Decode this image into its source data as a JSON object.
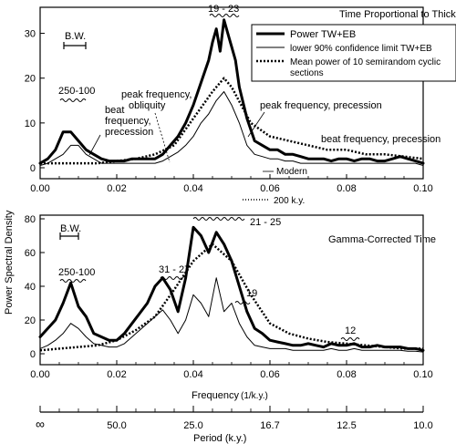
{
  "figure": {
    "ylabel": "Power Spectral Density",
    "xlabel": "Frequency",
    "xlabel_units": "(1/k.y.)",
    "period_axis_label": "Period (k.y.)",
    "period_ticks": [
      "∞",
      "50.0",
      "25.0",
      "16.7",
      "12.5",
      "10.0"
    ]
  },
  "legend": {
    "entries": [
      {
        "label": "Power TW+EB",
        "style": "thick"
      },
      {
        "label": "lower 90% confidence limit TW+EB",
        "style": "thin"
      },
      {
        "label": "Mean power of 10 semirandom cyclic",
        "label2": "sections",
        "style": "dotted"
      }
    ]
  },
  "chart_data": [
    {
      "type": "line",
      "title": "Time Proportional to Thickness",
      "xlim": [
        0,
        0.1
      ],
      "ylim": [
        0,
        35
      ],
      "x_ticks": [
        "0.00",
        "0.02",
        "0.04",
        "0.06",
        "0.08",
        "0.10"
      ],
      "y_ticks": [
        "0",
        "10",
        "20",
        "30"
      ],
      "annotations": {
        "bw": "B.W.",
        "band_250_100": "250-100",
        "band_19_23": "19 - 23",
        "beat_precession_1": "beat",
        "beat_precession_2": "frequency,",
        "beat_precession_3": "precession",
        "peak_obliquity_1": "peak frequency,",
        "peak_obliquity_2": "obliquity",
        "peak_precession": "peak frequency, precession",
        "beat_precession_right": "beat frequency, precession",
        "modern": "Modern",
        "k200": "200 k.y."
      },
      "series": [
        {
          "name": "Power TW+EB",
          "x": [
            0,
            0.002,
            0.004,
            0.006,
            0.008,
            0.01,
            0.012,
            0.014,
            0.016,
            0.018,
            0.02,
            0.022,
            0.024,
            0.026,
            0.028,
            0.03,
            0.032,
            0.034,
            0.036,
            0.038,
            0.04,
            0.042,
            0.044,
            0.045,
            0.046,
            0.047,
            0.048,
            0.049,
            0.05,
            0.051,
            0.052,
            0.054,
            0.056,
            0.058,
            0.06,
            0.062,
            0.064,
            0.066,
            0.068,
            0.07,
            0.072,
            0.074,
            0.076,
            0.078,
            0.08,
            0.082,
            0.084,
            0.086,
            0.088,
            0.09,
            0.092,
            0.094,
            0.096,
            0.098,
            0.1
          ],
          "values": [
            1,
            2,
            4,
            8,
            8,
            6,
            4,
            3,
            2,
            1.5,
            1.5,
            1.5,
            2,
            2,
            2,
            2,
            3,
            5,
            7,
            10,
            14,
            19,
            24,
            28,
            31,
            26,
            33,
            30,
            27,
            24,
            18,
            11,
            6,
            5,
            4,
            4,
            3,
            3,
            2.5,
            2,
            2,
            2,
            1.5,
            2,
            2,
            1.5,
            2,
            2,
            1.5,
            1.5,
            2,
            2.5,
            2,
            1.5,
            1
          ]
        },
        {
          "name": "lower 90% confidence limit TW+EB",
          "x": [
            0,
            0.002,
            0.004,
            0.006,
            0.008,
            0.01,
            0.012,
            0.014,
            0.016,
            0.018,
            0.02,
            0.022,
            0.024,
            0.026,
            0.028,
            0.03,
            0.032,
            0.034,
            0.036,
            0.038,
            0.04,
            0.042,
            0.044,
            0.046,
            0.048,
            0.05,
            0.052,
            0.054,
            0.056,
            0.058,
            0.06,
            0.062,
            0.064,
            0.066,
            0.068,
            0.07,
            0.072,
            0.074,
            0.076,
            0.078,
            0.08,
            0.082,
            0.084,
            0.086,
            0.088,
            0.09,
            0.092,
            0.094,
            0.096,
            0.098,
            0.1
          ],
          "values": [
            0.5,
            1,
            2,
            3,
            5,
            5,
            3,
            2,
            1,
            1,
            1,
            1,
            1,
            1,
            1,
            1,
            1.5,
            2.5,
            3.5,
            5,
            7,
            10,
            12,
            15,
            17,
            14,
            10,
            5,
            3,
            2.5,
            2,
            2,
            1.5,
            1.5,
            1,
            1,
            1,
            1,
            1,
            1,
            1,
            1,
            1,
            1,
            1,
            1,
            1,
            1,
            1,
            1,
            0.5
          ]
        },
        {
          "name": "Mean power of 10 semirandom cyclic sections",
          "x": [
            0,
            0.005,
            0.01,
            0.015,
            0.02,
            0.025,
            0.03,
            0.035,
            0.04,
            0.045,
            0.048,
            0.05,
            0.055,
            0.06,
            0.065,
            0.07,
            0.075,
            0.08,
            0.085,
            0.09,
            0.095,
            0.1
          ],
          "values": [
            1,
            1,
            1,
            1,
            1.5,
            2,
            3,
            5,
            11,
            17,
            20,
            18,
            10,
            7,
            6,
            5,
            4,
            4,
            3,
            3,
            2.5,
            2
          ]
        }
      ]
    },
    {
      "type": "line",
      "title": "Gamma-Corrected Time",
      "xlim": [
        0,
        0.1
      ],
      "ylim": [
        0,
        80
      ],
      "x_ticks": [
        "0.00",
        "0.02",
        "0.04",
        "0.06",
        "0.08",
        "0.10"
      ],
      "y_ticks": [
        "0",
        "20",
        "40",
        "60",
        "80"
      ],
      "annotations": {
        "bw": "B.W.",
        "band_250_100": "250-100",
        "band_21_25": "21 - 25",
        "band_31_27": "31 - 27",
        "band_19": "19",
        "band_12": "12"
      },
      "series": [
        {
          "name": "Power TW+EB",
          "x": [
            0,
            0.002,
            0.004,
            0.006,
            0.008,
            0.01,
            0.012,
            0.014,
            0.016,
            0.018,
            0.02,
            0.022,
            0.024,
            0.026,
            0.028,
            0.03,
            0.032,
            0.034,
            0.036,
            0.038,
            0.04,
            0.042,
            0.044,
            0.046,
            0.048,
            0.05,
            0.052,
            0.054,
            0.056,
            0.058,
            0.06,
            0.062,
            0.064,
            0.066,
            0.068,
            0.07,
            0.072,
            0.074,
            0.076,
            0.078,
            0.08,
            0.082,
            0.084,
            0.086,
            0.088,
            0.09,
            0.092,
            0.094,
            0.096,
            0.098,
            0.1
          ],
          "values": [
            10,
            15,
            20,
            30,
            42,
            28,
            22,
            12,
            10,
            8,
            8,
            12,
            18,
            24,
            30,
            40,
            45,
            38,
            25,
            45,
            75,
            70,
            60,
            72,
            65,
            55,
            40,
            25,
            15,
            12,
            8,
            7,
            6,
            5,
            5,
            6,
            5,
            4,
            6,
            5,
            5,
            6,
            4,
            4,
            5,
            4,
            4,
            4,
            3,
            3,
            2
          ]
        },
        {
          "name": "lower 90% confidence limit TW+EB",
          "x": [
            0,
            0.002,
            0.004,
            0.006,
            0.008,
            0.01,
            0.012,
            0.014,
            0.016,
            0.018,
            0.02,
            0.022,
            0.024,
            0.026,
            0.028,
            0.03,
            0.032,
            0.034,
            0.036,
            0.038,
            0.04,
            0.042,
            0.044,
            0.046,
            0.048,
            0.05,
            0.052,
            0.054,
            0.056,
            0.058,
            0.06,
            0.062,
            0.064,
            0.066,
            0.068,
            0.07,
            0.072,
            0.074,
            0.076,
            0.078,
            0.08,
            0.082,
            0.084,
            0.086,
            0.088,
            0.09,
            0.092,
            0.094,
            0.096,
            0.098,
            0.1
          ],
          "values": [
            3,
            5,
            8,
            12,
            18,
            15,
            10,
            6,
            5,
            4,
            4,
            6,
            10,
            14,
            18,
            22,
            26,
            20,
            12,
            20,
            35,
            30,
            22,
            45,
            25,
            30,
            18,
            10,
            5,
            4,
            3,
            3,
            3,
            2,
            2,
            2,
            2,
            2,
            3,
            2,
            2,
            3,
            2,
            2,
            2,
            2,
            2,
            2,
            1.5,
            1.5,
            1
          ]
        },
        {
          "name": "Mean power of 10 semirandom cyclic sections",
          "x": [
            0,
            0.005,
            0.01,
            0.015,
            0.02,
            0.025,
            0.03,
            0.035,
            0.04,
            0.045,
            0.05,
            0.055,
            0.06,
            0.065,
            0.07,
            0.075,
            0.08,
            0.085,
            0.09,
            0.095,
            0.1
          ],
          "values": [
            2,
            3,
            4,
            5,
            8,
            14,
            22,
            38,
            55,
            65,
            55,
            35,
            18,
            12,
            9,
            7,
            6,
            5,
            4,
            3,
            3
          ]
        }
      ]
    }
  ]
}
